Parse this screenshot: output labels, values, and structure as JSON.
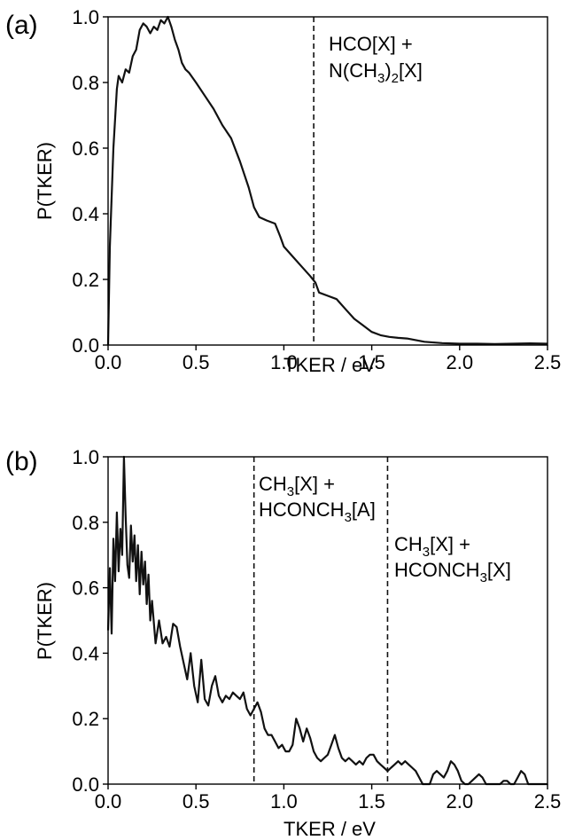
{
  "chart_data": [
    {
      "panel": "(a)",
      "type": "line",
      "xlabel": "TKER / eV",
      "ylabel": "P(TKER)",
      "xlim": [
        0,
        2.5
      ],
      "ylim": [
        0,
        1.0
      ],
      "xticks": [
        "0.0",
        "0.5",
        "1.0",
        "1.5",
        "2.0",
        "2.5"
      ],
      "yticks": [
        "0.0",
        "0.2",
        "0.4",
        "0.6",
        "0.8",
        "1.0"
      ],
      "grid": false,
      "series": [
        {
          "x": [
            0.0,
            0.01,
            0.03,
            0.05,
            0.06,
            0.08,
            0.1,
            0.12,
            0.14,
            0.16,
            0.18,
            0.2,
            0.22,
            0.24,
            0.26,
            0.28,
            0.3,
            0.32,
            0.34,
            0.36,
            0.38,
            0.4,
            0.42,
            0.44,
            0.46,
            0.5,
            0.55,
            0.6,
            0.65,
            0.7,
            0.75,
            0.8,
            0.83,
            0.86,
            0.9,
            0.95,
            0.98,
            1.0,
            1.05,
            1.1,
            1.15,
            1.18,
            1.2,
            1.25,
            1.3,
            1.35,
            1.4,
            1.45,
            1.5,
            1.55,
            1.6,
            1.65,
            1.7,
            1.75,
            1.8,
            1.9,
            2.0,
            2.1,
            2.2,
            2.3,
            2.4,
            2.5
          ],
          "y": [
            0.0,
            0.3,
            0.6,
            0.78,
            0.82,
            0.8,
            0.84,
            0.83,
            0.88,
            0.9,
            0.96,
            0.98,
            0.97,
            0.95,
            0.97,
            0.96,
            0.99,
            0.98,
            1.0,
            0.97,
            0.93,
            0.9,
            0.86,
            0.84,
            0.83,
            0.8,
            0.76,
            0.72,
            0.67,
            0.63,
            0.56,
            0.48,
            0.42,
            0.39,
            0.38,
            0.37,
            0.33,
            0.3,
            0.27,
            0.24,
            0.21,
            0.19,
            0.16,
            0.15,
            0.14,
            0.11,
            0.08,
            0.06,
            0.04,
            0.03,
            0.025,
            0.022,
            0.02,
            0.015,
            0.01,
            0.006,
            0.004,
            0.004,
            0.003,
            0.004,
            0.005,
            0.004
          ]
        }
      ],
      "vlines": [
        1.17
      ],
      "annotations": [
        {
          "x": 1.22,
          "y": 0.92,
          "line1": "HCO[X] +",
          "line2_main": "N(CH",
          "line2_sub": "3",
          "line2_mid": ")",
          "line2_sub2": "2",
          "line2_end": "[X]"
        }
      ]
    },
    {
      "panel": "(b)",
      "type": "line",
      "xlabel": "TKER / eV",
      "ylabel": "P(TKER)",
      "xlim": [
        0,
        2.5
      ],
      "ylim": [
        0,
        1.0
      ],
      "xticks": [
        "0.0",
        "0.5",
        "1.0",
        "1.5",
        "2.0",
        "2.5"
      ],
      "yticks": [
        "0.0",
        "0.2",
        "0.4",
        "0.6",
        "0.8",
        "1.0"
      ],
      "grid": false,
      "series": [
        {
          "x": [
            0.0,
            0.01,
            0.02,
            0.03,
            0.04,
            0.05,
            0.06,
            0.07,
            0.08,
            0.09,
            0.1,
            0.11,
            0.12,
            0.13,
            0.14,
            0.15,
            0.16,
            0.17,
            0.18,
            0.19,
            0.2,
            0.21,
            0.22,
            0.23,
            0.24,
            0.25,
            0.27,
            0.29,
            0.31,
            0.33,
            0.35,
            0.37,
            0.39,
            0.41,
            0.43,
            0.45,
            0.47,
            0.49,
            0.51,
            0.53,
            0.55,
            0.57,
            0.59,
            0.61,
            0.63,
            0.65,
            0.67,
            0.69,
            0.71,
            0.73,
            0.75,
            0.77,
            0.79,
            0.81,
            0.83,
            0.85,
            0.87,
            0.89,
            0.91,
            0.93,
            0.95,
            0.97,
            0.99,
            1.01,
            1.03,
            1.05,
            1.07,
            1.09,
            1.11,
            1.13,
            1.15,
            1.17,
            1.19,
            1.21,
            1.23,
            1.25,
            1.27,
            1.29,
            1.31,
            1.33,
            1.35,
            1.37,
            1.39,
            1.41,
            1.43,
            1.45,
            1.47,
            1.49,
            1.51,
            1.53,
            1.55,
            1.57,
            1.59,
            1.61,
            1.63,
            1.65,
            1.67,
            1.69,
            1.71,
            1.73,
            1.75,
            1.77,
            1.79,
            1.81,
            1.83,
            1.85,
            1.87,
            1.89,
            1.91,
            1.93,
            1.95,
            1.97,
            1.99,
            2.01,
            2.03,
            2.05,
            2.07,
            2.09,
            2.11,
            2.13,
            2.15,
            2.17,
            2.19,
            2.21,
            2.23,
            2.25,
            2.27,
            2.29,
            2.31,
            2.33,
            2.35,
            2.37,
            2.39,
            2.41,
            2.43,
            2.45,
            2.47,
            2.5
          ],
          "y": [
            0.47,
            0.66,
            0.46,
            0.75,
            0.62,
            0.83,
            0.65,
            0.78,
            0.7,
            1.0,
            0.82,
            0.67,
            0.63,
            0.79,
            0.68,
            0.76,
            0.62,
            0.73,
            0.58,
            0.71,
            0.61,
            0.68,
            0.55,
            0.64,
            0.5,
            0.56,
            0.43,
            0.5,
            0.43,
            0.45,
            0.42,
            0.49,
            0.48,
            0.42,
            0.37,
            0.32,
            0.4,
            0.3,
            0.25,
            0.38,
            0.26,
            0.24,
            0.3,
            0.33,
            0.27,
            0.25,
            0.27,
            0.26,
            0.28,
            0.27,
            0.26,
            0.28,
            0.23,
            0.21,
            0.23,
            0.25,
            0.22,
            0.17,
            0.15,
            0.15,
            0.13,
            0.11,
            0.12,
            0.1,
            0.1,
            0.12,
            0.2,
            0.17,
            0.13,
            0.17,
            0.14,
            0.1,
            0.08,
            0.07,
            0.08,
            0.09,
            0.12,
            0.15,
            0.11,
            0.08,
            0.07,
            0.08,
            0.07,
            0.06,
            0.07,
            0.06,
            0.08,
            0.09,
            0.09,
            0.07,
            0.06,
            0.05,
            0.04,
            0.05,
            0.06,
            0.07,
            0.06,
            0.07,
            0.06,
            0.05,
            0.04,
            0.02,
            0.0,
            0.0,
            0.0,
            0.03,
            0.04,
            0.03,
            0.02,
            0.04,
            0.07,
            0.06,
            0.04,
            0.01,
            0.0,
            0.0,
            0.01,
            0.02,
            0.03,
            0.02,
            0.0,
            0.0,
            0.0,
            0.0,
            0.0,
            0.01,
            0.01,
            0.0,
            0.0,
            0.02,
            0.04,
            0.03,
            0.0,
            0.0,
            0.0,
            0.0,
            0.0,
            0.0
          ]
        }
      ],
      "vlines": [
        0.83,
        1.59
      ],
      "annotations": [
        {
          "x": 0.86,
          "y": 0.93,
          "line1_main": "CH",
          "line1_sub": "3",
          "line1_end": "[X] +",
          "line2_main": "HCONCH",
          "line2_sub": "3",
          "line2_end": "[A]"
        },
        {
          "x": 1.62,
          "y": 0.72,
          "line1_main": "CH",
          "line1_sub": "3",
          "line1_end": "[X] +",
          "line2_main": "HCONCH",
          "line2_sub": "3",
          "line2_end": "[X]"
        }
      ]
    }
  ]
}
